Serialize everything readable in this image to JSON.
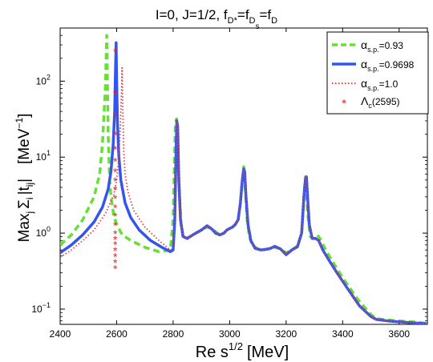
{
  "chart_data": {
    "type": "line",
    "title": "I=0, J=1/2, f",
    "title_subs": [
      "D*",
      "D",
      "D"
    ],
    "title_sub2": "s",
    "xlabel": "Re s",
    "xlabel_sup": "1/2",
    "xlabel_unit": "[MeV]",
    "ylabel_main": "Max",
    "ylabel_sum": "Σ",
    "ylabel_sub_j": "j",
    "ylabel_sub_i": "i",
    "ylabel_t": "|t",
    "ylabel_sub_ij": "ij",
    "ylabel_bar": "|",
    "ylabel_unit": "[MeV",
    "ylabel_unit_sup": "−1",
    "ylabel_unit_close": "]",
    "xlim": [
      2400,
      3700
    ],
    "ylim": [
      0.063,
      500
    ],
    "yscale": "log",
    "x_ticks": [
      2400,
      2600,
      2800,
      3000,
      3200,
      3400,
      3600
    ],
    "x_tick_labels": [
      "2400",
      "2600",
      "2800",
      "3000",
      "3200",
      "3400",
      "3600"
    ],
    "y_ticks": [
      0.1,
      1,
      10,
      100
    ],
    "y_tick_base": "10",
    "y_tick_exps": [
      "−1",
      "0",
      "1",
      "2"
    ],
    "grid": false,
    "legend_position": "top-right",
    "legend": [
      {
        "label": "α",
        "sub": "s.p.",
        "value": "=0.93"
      },
      {
        "label": "α",
        "sub": "s.p.",
        "value": "=0.9698"
      },
      {
        "label": "α",
        "sub": "s.p.",
        "value": "=1.0"
      },
      {
        "label": "Λ",
        "sub": "c",
        "value": "(2595)"
      }
    ],
    "series": [
      {
        "style": "dashed",
        "color": "#66e033",
        "x": [
          2400,
          2440,
          2480,
          2520,
          2540,
          2550,
          2560,
          2565,
          2570,
          2575,
          2580,
          2590,
          2600,
          2620,
          2650,
          2700,
          2750,
          2790,
          2800,
          2808,
          2812,
          2820,
          2828,
          2835,
          2845,
          2860,
          2880,
          2900,
          2920,
          2935,
          2950,
          2965,
          2980,
          2990,
          3000,
          3010,
          3020,
          3030,
          3038,
          3045,
          3050,
          3055,
          3062,
          3070,
          3080,
          3100,
          3120,
          3140,
          3160,
          3180,
          3200,
          3220,
          3240,
          3255,
          3263,
          3268,
          3275,
          3285,
          3300,
          3310,
          3320,
          3340,
          3360,
          3400,
          3450,
          3500,
          3520,
          3560,
          3600,
          3650,
          3700
        ],
        "y": [
          0.7,
          0.95,
          1.5,
          3.0,
          6.0,
          15,
          80,
          400,
          20,
          5.0,
          3.0,
          1.7,
          1.3,
          0.95,
          0.8,
          0.65,
          0.57,
          0.6,
          1.5,
          28,
          32,
          5.0,
          1.3,
          0.9,
          0.85,
          0.9,
          1.0,
          1.1,
          1.2,
          1.15,
          1.05,
          0.95,
          1.0,
          1.1,
          1.15,
          1.2,
          1.3,
          1.5,
          2.5,
          5.0,
          7.5,
          4.0,
          1.5,
          0.9,
          0.7,
          0.62,
          0.6,
          0.63,
          0.65,
          0.62,
          0.55,
          0.6,
          0.68,
          1.0,
          3.0,
          5.5,
          2.0,
          0.9,
          0.85,
          0.95,
          0.85,
          0.6,
          0.45,
          0.26,
          0.14,
          0.085,
          0.075,
          0.072,
          0.07,
          0.068,
          0.065
        ]
      },
      {
        "style": "solid",
        "color": "#3355ee",
        "x": [
          2400,
          2440,
          2480,
          2520,
          2550,
          2570,
          2580,
          2588,
          2593,
          2596,
          2598,
          2600,
          2603,
          2608,
          2615,
          2630,
          2650,
          2680,
          2720,
          2760,
          2790,
          2800,
          2806,
          2810,
          2813,
          2816,
          2820,
          2826,
          2835,
          2850,
          2870,
          2900,
          2920,
          2935,
          2950,
          2965,
          2980,
          2990,
          3000,
          3010,
          3020,
          3030,
          3038,
          3045,
          3050,
          3053,
          3058,
          3065,
          3075,
          3090,
          3110,
          3140,
          3160,
          3180,
          3200,
          3220,
          3240,
          3255,
          3263,
          3268,
          3272,
          3276,
          3282,
          3292,
          3305,
          3315,
          3330,
          3350,
          3380,
          3420,
          3460,
          3500,
          3520,
          3560,
          3600,
          3650,
          3700
        ],
        "y": [
          0.55,
          0.7,
          0.95,
          1.4,
          2.2,
          3.8,
          6.5,
          15,
          40,
          150,
          320,
          100,
          28,
          10,
          5.0,
          2.5,
          1.6,
          1.1,
          0.8,
          0.65,
          0.57,
          0.6,
          1.5,
          10,
          30,
          25,
          5.0,
          1.5,
          0.9,
          0.85,
          0.95,
          1.1,
          1.25,
          1.15,
          1.0,
          0.95,
          1.0,
          1.1,
          1.15,
          1.2,
          1.3,
          1.5,
          2.5,
          5.0,
          7.0,
          6.5,
          3.0,
          1.3,
          0.8,
          0.63,
          0.6,
          0.62,
          0.67,
          0.62,
          0.52,
          0.6,
          0.66,
          1.0,
          3.0,
          5.0,
          5.5,
          3.0,
          1.3,
          0.85,
          0.85,
          0.8,
          0.6,
          0.45,
          0.3,
          0.18,
          0.11,
          0.08,
          0.073,
          0.07,
          0.068,
          0.066,
          0.064
        ]
      },
      {
        "style": "dotted",
        "color": "#e04040",
        "x": [
          2400,
          2440,
          2480,
          2520,
          2560,
          2590,
          2600,
          2608,
          2613,
          2617,
          2619,
          2621,
          2625,
          2630,
          2640,
          2660,
          2700,
          2750,
          2790,
          2800,
          2806,
          2810,
          2813,
          2816,
          2820,
          2826,
          2835,
          2850,
          2870,
          2900,
          2920,
          2935,
          2950,
          2965,
          2980,
          2990,
          3000,
          3010,
          3020,
          3030,
          3038,
          3045,
          3050,
          3053,
          3058,
          3065,
          3075,
          3090,
          3110,
          3140,
          3160,
          3180,
          3200,
          3220,
          3240,
          3255,
          3263,
          3268,
          3272,
          3276,
          3282,
          3292,
          3305,
          3315,
          3330,
          3350,
          3380,
          3420,
          3460,
          3500,
          3520,
          3560,
          3600,
          3650,
          3700
        ],
        "y": [
          0.48,
          0.6,
          0.8,
          1.1,
          1.8,
          3.2,
          5.0,
          10,
          25,
          70,
          150,
          60,
          12,
          6.0,
          3.5,
          2.0,
          1.2,
          0.8,
          0.6,
          0.62,
          1.5,
          10,
          30,
          25,
          5.0,
          1.5,
          0.9,
          0.85,
          0.95,
          1.1,
          1.25,
          1.15,
          1.0,
          0.95,
          1.0,
          1.1,
          1.15,
          1.2,
          1.3,
          1.5,
          2.5,
          5.0,
          7.0,
          6.5,
          3.0,
          1.3,
          0.8,
          0.63,
          0.6,
          0.62,
          0.67,
          0.62,
          0.52,
          0.6,
          0.66,
          1.0,
          3.0,
          5.0,
          5.5,
          3.0,
          1.3,
          0.85,
          0.85,
          0.8,
          0.6,
          0.45,
          0.3,
          0.18,
          0.11,
          0.08,
          0.073,
          0.07,
          0.068,
          0.066,
          0.064
        ]
      },
      {
        "style": "markers",
        "color": "#ee2222",
        "x": [
          2595,
          2595,
          2595,
          2595,
          2595,
          2595,
          2595,
          2595,
          2595,
          2595,
          2595,
          2595,
          2595,
          2595,
          2595,
          2595,
          2595,
          2595,
          2595,
          2595
        ],
        "y": [
          0.35,
          0.42,
          0.5,
          0.6,
          0.72,
          0.85,
          1.0,
          1.3,
          1.7,
          2.2,
          2.9,
          3.8,
          5.0,
          6.6,
          9.0,
          13,
          20,
          35,
          70,
          250
        ]
      }
    ]
  }
}
